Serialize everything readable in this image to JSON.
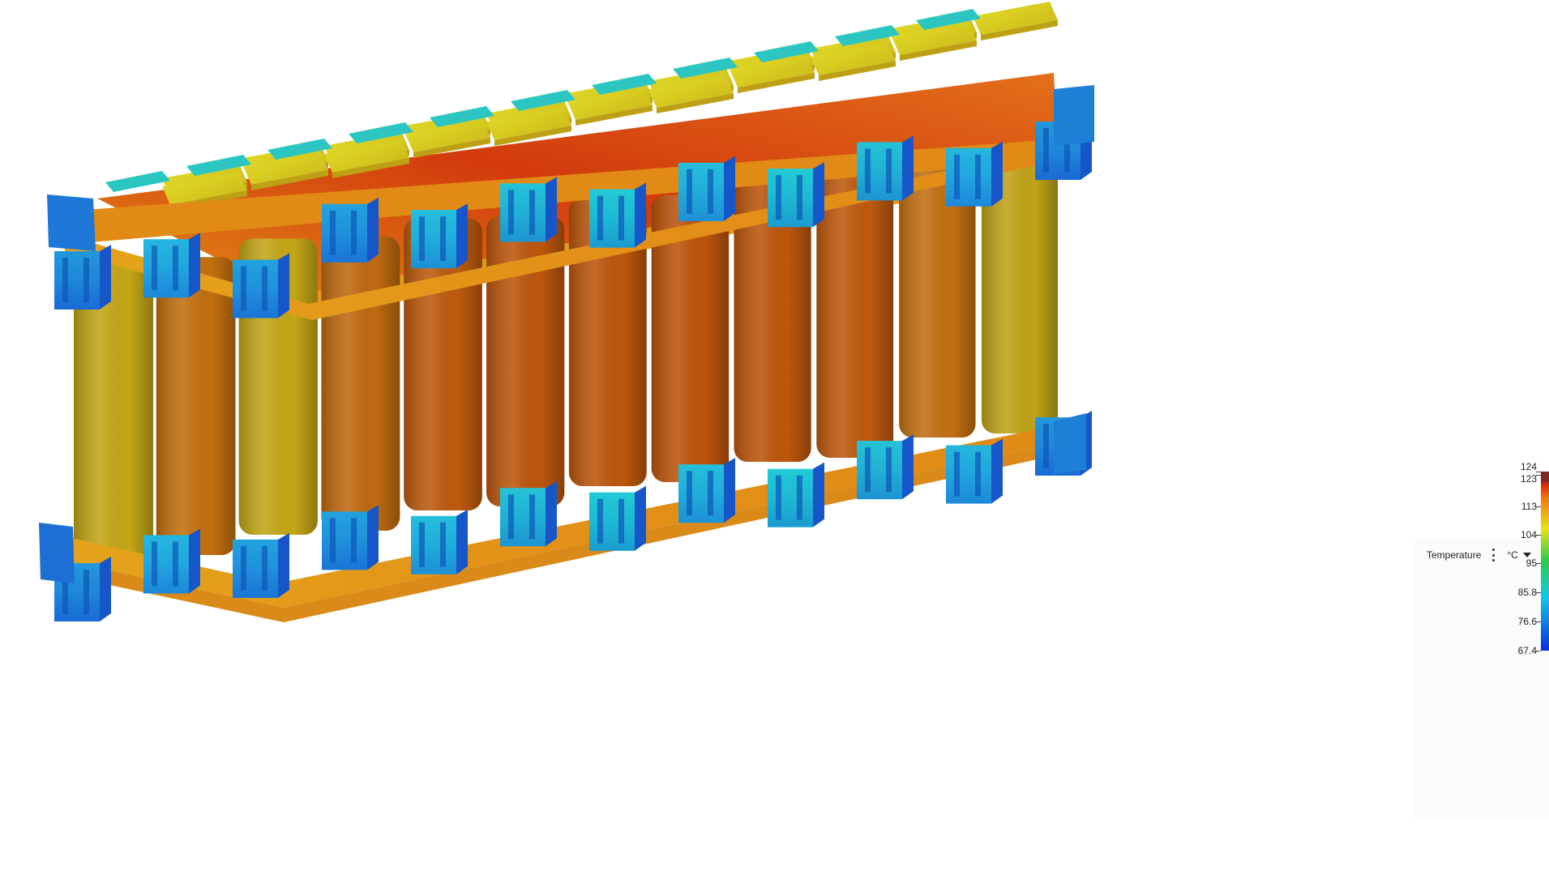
{
  "legend": {
    "title": "Temperature",
    "unit": "°C",
    "ticks": [
      {
        "value": 124,
        "label": "124"
      },
      {
        "value": 123,
        "label": "123"
      },
      {
        "value": 113,
        "label": "113"
      },
      {
        "value": 104,
        "label": "104"
      },
      {
        "value": 95,
        "label": "95"
      },
      {
        "value": 85.8,
        "label": "85.8"
      },
      {
        "value": 76.6,
        "label": "76.6"
      },
      {
        "value": 67.4,
        "label": "67.4"
      }
    ],
    "min": 67.4,
    "max": 124,
    "colors": {
      "blue": "#0a2de0",
      "cyan": "#12c8e8",
      "green": "#2ecb4a",
      "yellow": "#e7e21a",
      "orange": "#ee7a10",
      "red": "#d2280c",
      "dark_red": "#7a2a22"
    }
  },
  "model": {
    "cell_body_colors": [
      "#c4a616",
      "#c3700f",
      "#c4a616",
      "#c06a10",
      "#bd5a0d",
      "#bd560c",
      "#bd560c",
      "#bd540b",
      "#bd560c",
      "#be5a0d",
      "#c27012",
      "#c0a318"
    ],
    "connector_colors": [
      "#1d78d8",
      "#22a6df",
      "#1f87dc",
      "#1f87dc",
      "#22b2d9",
      "#22b8d3",
      "#1ec4d0",
      "#22b2d9",
      "#1ec4d0",
      "#22b8d3",
      "#22a6df",
      "#1d78d8"
    ]
  }
}
